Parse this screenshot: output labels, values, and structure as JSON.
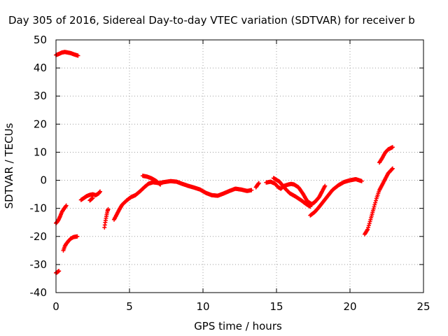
{
  "chart_data": {
    "type": "scatter",
    "title": "Day 305 of 2016, Sidereal Day-to-day VTEC variation (SDTVAR) for receiver b",
    "xlabel": "GPS time / hours",
    "ylabel": "SDTVAR / TECUs",
    "xlim": [
      0,
      25
    ],
    "ylim": [
      -40,
      50
    ],
    "xticks": [
      "0",
      "5",
      "10",
      "15",
      "20",
      "25"
    ],
    "yticks": [
      "-40",
      "-30",
      "-20",
      "-10",
      "0",
      "10",
      "20",
      "30",
      "40",
      "50"
    ],
    "grid": true,
    "legend": "none",
    "marker": "plus",
    "color": "#ff0000",
    "series": [
      {
        "segments": [
          [
            [
              0.0,
              44.6
            ],
            [
              0.2,
              45.0
            ],
            [
              0.4,
              45.5
            ],
            [
              0.6,
              45.7
            ],
            [
              0.8,
              45.5
            ],
            [
              1.0,
              45.3
            ],
            [
              1.2,
              44.9
            ],
            [
              1.5,
              44.4
            ]
          ],
          [
            [
              0.0,
              -33.0
            ],
            [
              0.1,
              -32.7
            ],
            [
              0.2,
              -32.3
            ]
          ],
          [
            [
              0.0,
              -15.3
            ],
            [
              0.1,
              -14.7
            ],
            [
              0.2,
              -13.8
            ],
            [
              0.3,
              -12.6
            ],
            [
              0.4,
              -11.3
            ],
            [
              0.55,
              -10.1
            ],
            [
              0.7,
              -9.0
            ]
          ],
          [
            [
              0.5,
              -25.0
            ],
            [
              0.6,
              -23.5
            ],
            [
              0.7,
              -22.6
            ],
            [
              0.85,
              -21.6
            ],
            [
              1.0,
              -20.8
            ],
            [
              1.2,
              -20.2
            ],
            [
              1.45,
              -20.0
            ]
          ],
          [
            [
              1.7,
              -7.0
            ],
            [
              1.9,
              -6.3
            ],
            [
              2.1,
              -5.6
            ],
            [
              2.3,
              -5.2
            ],
            [
              2.5,
              -5.0
            ],
            [
              2.7,
              -5.3
            ],
            [
              2.9,
              -4.7
            ],
            [
              3.0,
              -4.0
            ]
          ],
          [
            [
              2.3,
              -7.2
            ],
            [
              2.5,
              -6.3
            ]
          ],
          [
            [
              3.3,
              -16.8
            ],
            [
              3.35,
              -15.0
            ],
            [
              3.4,
              -13.5
            ],
            [
              3.45,
              -12.2
            ],
            [
              3.5,
              -11.0
            ],
            [
              3.55,
              -10.3
            ]
          ],
          [
            [
              3.95,
              -14.0
            ],
            [
              4.1,
              -12.5
            ],
            [
              4.3,
              -10.5
            ],
            [
              4.5,
              -8.7
            ],
            [
              4.8,
              -7.2
            ],
            [
              5.1,
              -6.0
            ],
            [
              5.4,
              -5.3
            ],
            [
              5.7,
              -4.0
            ],
            [
              6.0,
              -2.5
            ],
            [
              6.3,
              -1.2
            ],
            [
              6.6,
              -0.7
            ],
            [
              7.0,
              -1.0
            ],
            [
              7.4,
              -0.6
            ],
            [
              7.8,
              -0.3
            ],
            [
              8.2,
              -0.5
            ],
            [
              8.6,
              -1.3
            ],
            [
              9.0,
              -2.0
            ],
            [
              9.4,
              -2.6
            ],
            [
              9.8,
              -3.3
            ],
            [
              10.2,
              -4.5
            ],
            [
              10.6,
              -5.3
            ],
            [
              11.0,
              -5.5
            ],
            [
              11.4,
              -4.7
            ],
            [
              11.8,
              -3.8
            ],
            [
              12.2,
              -3.0
            ],
            [
              12.6,
              -3.3
            ],
            [
              13.0,
              -3.8
            ],
            [
              13.3,
              -3.5
            ]
          ],
          [
            [
              5.9,
              1.6
            ],
            [
              6.2,
              1.3
            ],
            [
              6.5,
              0.7
            ],
            [
              6.8,
              -0.2
            ],
            [
              7.1,
              -1.5
            ]
          ],
          [
            [
              13.6,
              -2.5
            ],
            [
              13.7,
              -1.7
            ],
            [
              13.8,
              -1.0
            ]
          ],
          [
            [
              14.3,
              -0.8
            ],
            [
              14.6,
              -0.5
            ],
            [
              14.9,
              -1.2
            ],
            [
              15.1,
              -2.4
            ],
            [
              15.3,
              -3.0
            ],
            [
              15.5,
              -2.0
            ],
            [
              15.8,
              -1.5
            ],
            [
              16.0,
              -1.3
            ],
            [
              16.2,
              -1.5
            ],
            [
              16.5,
              -2.5
            ],
            [
              16.8,
              -4.8
            ],
            [
              17.1,
              -7.5
            ],
            [
              17.4,
              -8.5
            ],
            [
              17.6,
              -7.8
            ],
            [
              17.9,
              -6.0
            ],
            [
              18.1,
              -4.0
            ],
            [
              18.3,
              -2.0
            ]
          ],
          [
            [
              14.8,
              0.8
            ],
            [
              15.2,
              -0.5
            ],
            [
              15.6,
              -3.0
            ],
            [
              15.9,
              -4.6
            ],
            [
              16.3,
              -5.8
            ],
            [
              16.7,
              -7.2
            ],
            [
              17.0,
              -8.4
            ],
            [
              17.3,
              -9.4
            ]
          ],
          [
            [
              17.3,
              -12.5
            ],
            [
              17.6,
              -11.3
            ],
            [
              17.9,
              -9.5
            ],
            [
              18.2,
              -7.5
            ],
            [
              18.5,
              -5.5
            ],
            [
              18.8,
              -3.5
            ],
            [
              19.2,
              -1.8
            ],
            [
              19.6,
              -0.6
            ],
            [
              20.0,
              0.0
            ],
            [
              20.4,
              0.4
            ],
            [
              20.8,
              -0.3
            ]
          ],
          [
            [
              21.0,
              -19.2
            ],
            [
              21.2,
              -17.5
            ],
            [
              21.4,
              -14.0
            ],
            [
              21.6,
              -10.2
            ],
            [
              21.8,
              -6.5
            ],
            [
              22.0,
              -3.5
            ],
            [
              22.3,
              -0.5
            ],
            [
              22.6,
              2.5
            ],
            [
              22.9,
              4.2
            ]
          ],
          [
            [
              22.0,
              6.3
            ],
            [
              22.2,
              8.0
            ],
            [
              22.4,
              9.9
            ],
            [
              22.6,
              11.0
            ],
            [
              22.9,
              11.8
            ]
          ]
        ]
      }
    ]
  }
}
